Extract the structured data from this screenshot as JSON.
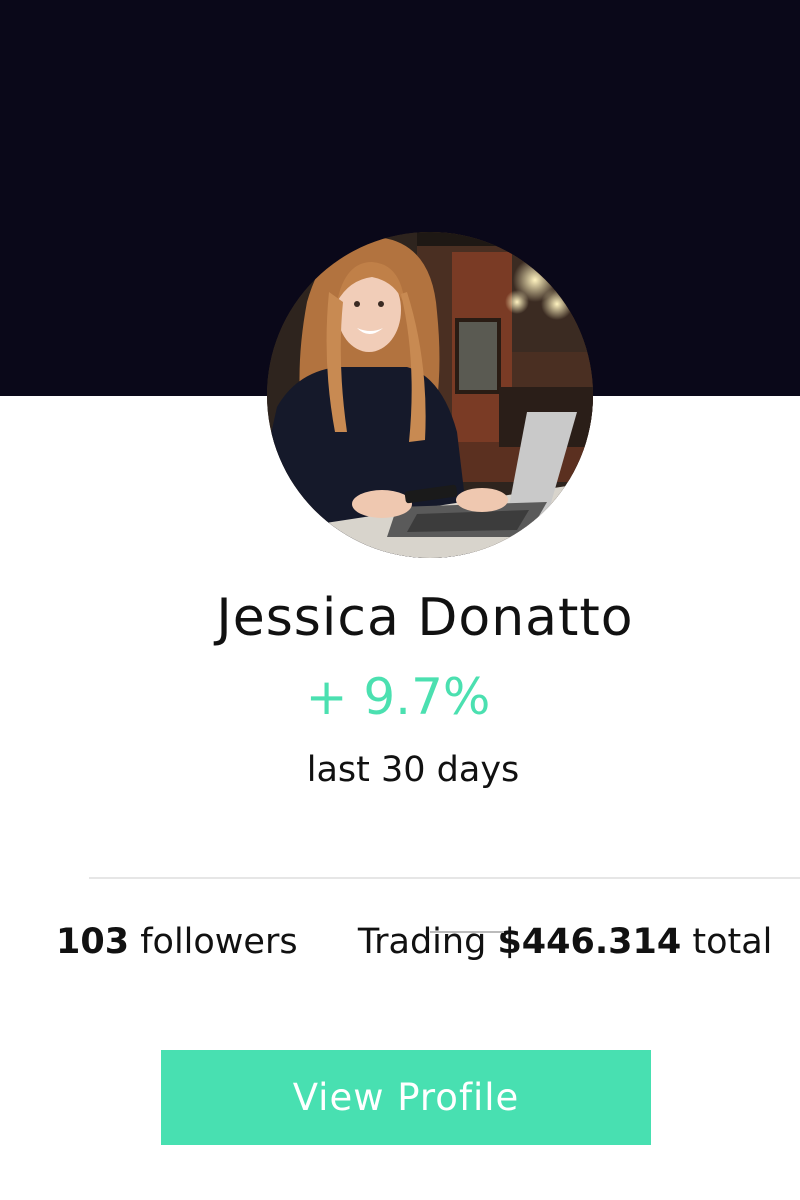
{
  "profile": {
    "name": "Jessica Donatto",
    "change": "+ 9.7%",
    "period": "last 30 days",
    "avatar_icon": "profile-photo"
  },
  "stats": {
    "followers_count": "103",
    "followers_label": "followers",
    "trading_prefix": "Trading",
    "trading_amount": "$446.314",
    "trading_suffix": "total"
  },
  "actions": {
    "view_profile_label": "View Profile"
  },
  "colors": {
    "header_bg": "#0a0819",
    "accent": "#48e0b1",
    "change_text": "#4be0b0"
  }
}
